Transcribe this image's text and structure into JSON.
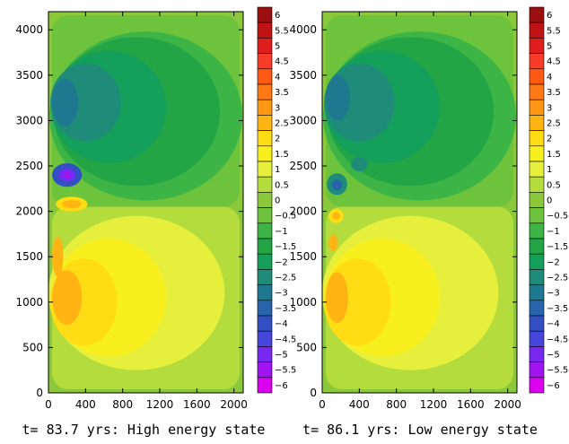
{
  "chart_data": [
    {
      "type": "heatmap",
      "caption": "t= 83.7 yrs: High energy state",
      "xlim": [
        0,
        2100
      ],
      "ylim": [
        0,
        4200
      ],
      "x_ticks": [
        "0",
        "400",
        "800",
        "1200",
        "1600",
        "2000"
      ],
      "y_ticks": [
        "0",
        "500",
        "1000",
        "1500",
        "2000",
        "2500",
        "3000",
        "3500",
        "4000"
      ],
      "features": [
        {
          "x": 950,
          "y": 3100,
          "level": -1.5,
          "rx": 900,
          "ry": 820
        },
        {
          "x": 650,
          "y": 3150,
          "level": -2,
          "rx": 620,
          "ry": 620
        },
        {
          "x": 400,
          "y": 3200,
          "level": -2.5,
          "rx": 380,
          "ry": 430
        },
        {
          "x": 180,
          "y": 3200,
          "level": -3,
          "rx": 140,
          "ry": 260
        },
        {
          "x": 200,
          "y": 2400,
          "level": -4,
          "rx": 160,
          "ry": 130
        },
        {
          "x": 200,
          "y": 2400,
          "level": -5,
          "rx": 90,
          "ry": 70
        },
        {
          "x": 200,
          "y": 2400,
          "level": -5.5,
          "rx": 40,
          "ry": 35
        },
        {
          "x": 950,
          "y": 1100,
          "level": 1,
          "rx": 950,
          "ry": 850
        },
        {
          "x": 650,
          "y": 1050,
          "level": 1.5,
          "rx": 620,
          "ry": 650
        },
        {
          "x": 380,
          "y": 1000,
          "level": 2,
          "rx": 360,
          "ry": 480
        },
        {
          "x": 200,
          "y": 1050,
          "level": 2.5,
          "rx": 160,
          "ry": 300
        },
        {
          "x": 250,
          "y": 2080,
          "level": 2,
          "rx": 170,
          "ry": 80
        },
        {
          "x": 250,
          "y": 2080,
          "level": 2.5,
          "rx": 100,
          "ry": 45
        },
        {
          "x": 100,
          "y": 1500,
          "level": 2.5,
          "rx": 60,
          "ry": 220
        }
      ]
    },
    {
      "type": "heatmap",
      "caption": "t= 86.1 yrs: Low energy state",
      "xlim": [
        0,
        2100
      ],
      "ylim": [
        0,
        4200
      ],
      "x_ticks": [
        "0",
        "400",
        "800",
        "1200",
        "1600",
        "2000"
      ],
      "y_ticks": [
        "0",
        "500",
        "1000",
        "1500",
        "2000",
        "2500",
        "3000",
        "3500",
        "4000"
      ],
      "features": [
        {
          "x": 950,
          "y": 3100,
          "level": -1.5,
          "rx": 900,
          "ry": 820
        },
        {
          "x": 650,
          "y": 3150,
          "level": -2,
          "rx": 620,
          "ry": 620
        },
        {
          "x": 400,
          "y": 3200,
          "level": -2.5,
          "rx": 380,
          "ry": 430
        },
        {
          "x": 170,
          "y": 3250,
          "level": -3,
          "rx": 130,
          "ry": 250
        },
        {
          "x": 160,
          "y": 2300,
          "level": -2.5,
          "rx": 110,
          "ry": 120
        },
        {
          "x": 160,
          "y": 2290,
          "level": -3.5,
          "rx": 55,
          "ry": 60
        },
        {
          "x": 400,
          "y": 2520,
          "level": -2.5,
          "rx": 90,
          "ry": 80
        },
        {
          "x": 950,
          "y": 1100,
          "level": 1,
          "rx": 950,
          "ry": 850
        },
        {
          "x": 650,
          "y": 1050,
          "level": 1.5,
          "rx": 620,
          "ry": 650
        },
        {
          "x": 380,
          "y": 1000,
          "level": 2,
          "rx": 360,
          "ry": 480
        },
        {
          "x": 160,
          "y": 1050,
          "level": 2.5,
          "rx": 120,
          "ry": 280
        },
        {
          "x": 150,
          "y": 1950,
          "level": 2,
          "rx": 80,
          "ry": 80
        },
        {
          "x": 150,
          "y": 1950,
          "level": 2.5,
          "rx": 40,
          "ry": 40
        },
        {
          "x": 120,
          "y": 1650,
          "level": 2.5,
          "rx": 50,
          "ry": 90
        }
      ]
    }
  ],
  "colorbar": {
    "labels": [
      "6",
      "5.5",
      "5",
      "4.5",
      "4",
      "3.5",
      "3",
      "2.5",
      "2",
      "1.5",
      "1",
      "0.5",
      "0",
      "−0.5",
      "−1",
      "−1.5",
      "−2",
      "−2.5",
      "−3",
      "−3.5",
      "−4",
      "−4.5",
      "−5",
      "−5.5",
      "−6"
    ],
    "colors": [
      "#9b0f0f",
      "#c01414",
      "#e01e1e",
      "#f83c28",
      "#ff5a14",
      "#ff7814",
      "#ff9614",
      "#ffb414",
      "#ffdc14",
      "#f8f01e",
      "#e6f03c",
      "#b4dc3c",
      "#8cc83c",
      "#6ec33c",
      "#3cb446",
      "#23a546",
      "#14a05a",
      "#1e8c78",
      "#1e7890",
      "#2864aa",
      "#3250c3",
      "#4646dc",
      "#7828f0",
      "#a014f0",
      "#dc00f0"
    ]
  }
}
